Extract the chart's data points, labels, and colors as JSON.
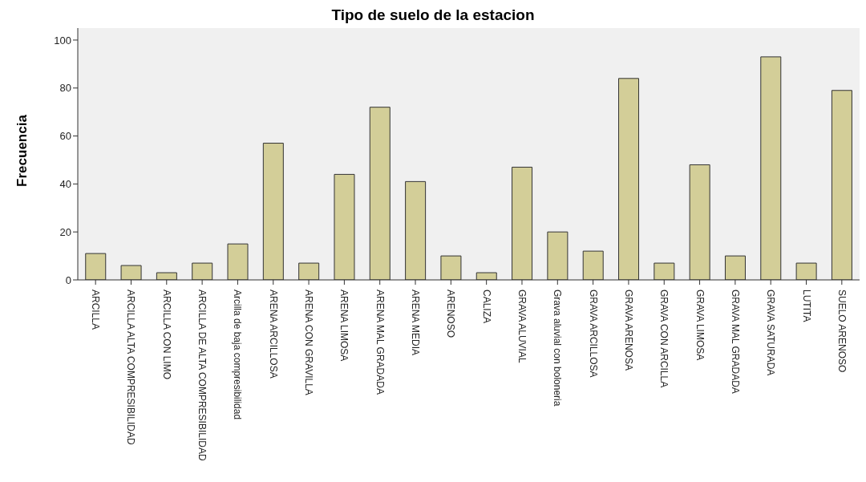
{
  "chart_data": {
    "type": "bar",
    "title": "Tipo de suelo de la estacion",
    "ylabel": "Frecuencia",
    "categories": [
      "ARCILLA",
      "ARCILLA ALTA COMPRESIBILIDAD",
      "ARCILLA CON LIMO",
      "ARCILLA DE ALTA COMPRESIBILIDAD",
      "Arcilla de baja compresibilidad",
      "ARENA ARCILLOSA",
      "ARENA CON GRAVILLA",
      "ARENA LIMOSA",
      "ARENA MAL GRADADA",
      "ARENA MEDIA",
      "ARENOSO",
      "CALIZA",
      "GRAVA ALUVIAL",
      "Grava aluvial con boloneria",
      "GRAVA ARCILLOSA",
      "GRAVA ARENOSA",
      "GRAVA CON ARCILLA",
      "GRAVA LIMOSA",
      "GRAVA MAL GRADADA",
      "GRAVA SATURADA",
      "LUTITA",
      "SUELO ARENOSO"
    ],
    "values": [
      11,
      6,
      3,
      7,
      15,
      57,
      7,
      44,
      72,
      41,
      10,
      3,
      47,
      20,
      12,
      84,
      7,
      48,
      10,
      93,
      7,
      79
    ],
    "color": "#d3ce98",
    "ylim": [
      0,
      105
    ],
    "yticks": [
      0,
      20,
      40,
      60,
      80,
      100
    ]
  }
}
